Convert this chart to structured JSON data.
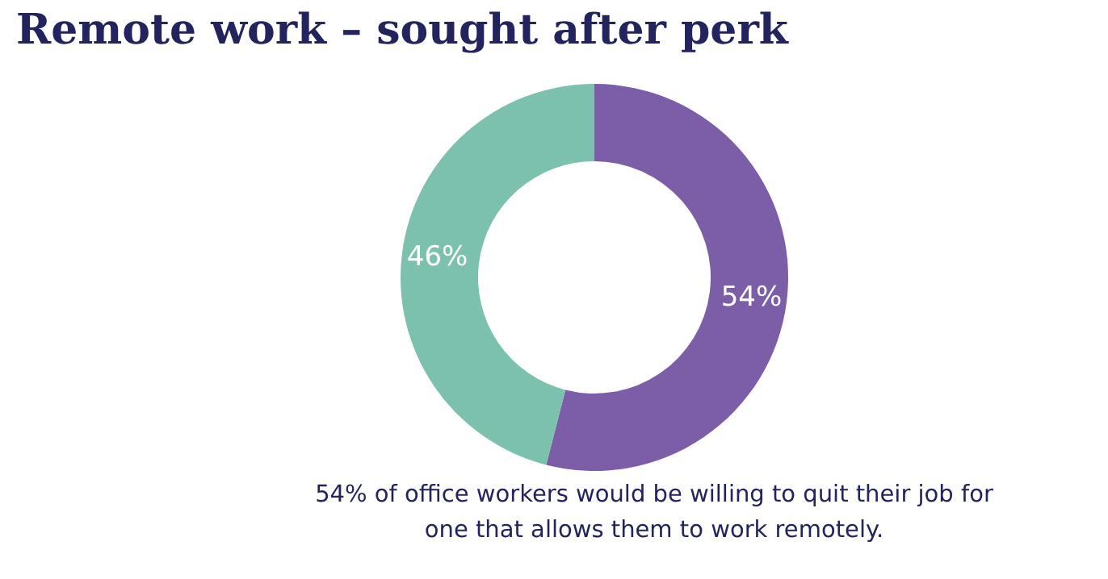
{
  "chart_data": {
    "type": "donut",
    "title": "Remote work – sought after perk",
    "categories": [
      null,
      null
    ],
    "values": [
      54,
      46
    ],
    "colors": [
      "#7b5ea7",
      "#7cc1ae"
    ],
    "value_labels": [
      "54%",
      "46%"
    ],
    "annotations": [
      "54% of office workers would be willing to quit their job for one that allows them to work remotely."
    ]
  }
}
